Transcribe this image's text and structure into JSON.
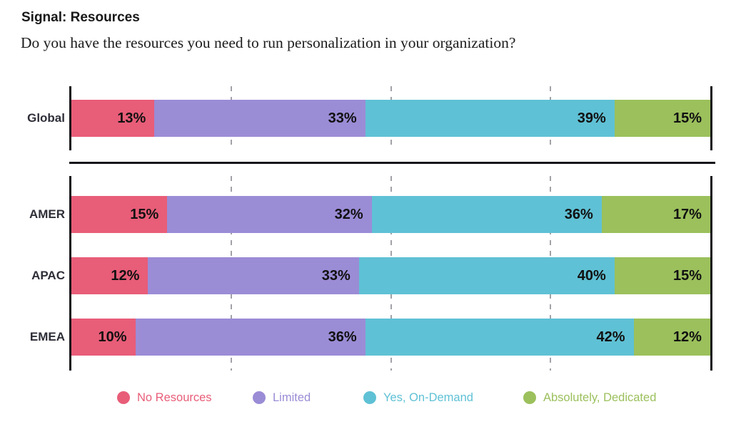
{
  "header": {
    "title": "Signal: Resources",
    "question": "Do you have the resources you need to run personalization in your organization?"
  },
  "chart_data": {
    "type": "bar",
    "orientation": "horizontal",
    "stacked": true,
    "unit": "%",
    "xlim": [
      0,
      100
    ],
    "gridlines_pct": [
      25,
      50,
      75
    ],
    "grid": "dashed-vertical",
    "title": "Signal: Resources",
    "subtitle": "Do you have the resources you need to run personalization in your organization?",
    "series_names": [
      "No Resources",
      "Limited",
      "Yes, On-Demand",
      "Absolutely, Dedicated"
    ],
    "series_colors": [
      "#E85D78",
      "#9B8CD6",
      "#5FC1D5",
      "#9BC05C"
    ],
    "groups": [
      {
        "label": "Global",
        "section": "global",
        "values": [
          13,
          33,
          39,
          15
        ],
        "value_labels": [
          "13%",
          "33%",
          "39%",
          "15%"
        ]
      },
      {
        "label": "AMER",
        "section": "regions",
        "values": [
          15,
          32,
          36,
          17
        ],
        "value_labels": [
          "15%",
          "32%",
          "36%",
          "17%"
        ]
      },
      {
        "label": "APAC",
        "section": "regions",
        "values": [
          12,
          33,
          40,
          15
        ],
        "value_labels": [
          "12%",
          "33%",
          "40%",
          "15%"
        ]
      },
      {
        "label": "EMEA",
        "section": "regions",
        "values": [
          10,
          36,
          42,
          12
        ],
        "value_labels": [
          "10%",
          "36%",
          "42%",
          "12%"
        ]
      }
    ],
    "legend_position": "bottom",
    "legend": [
      {
        "label": "No Resources",
        "color": "#E85D78"
      },
      {
        "label": "Limited",
        "color": "#9B8CD6"
      },
      {
        "label": "Yes, On-Demand",
        "color": "#5FC1D5"
      },
      {
        "label": "Absolutely, Dedicated",
        "color": "#9BC05C"
      }
    ],
    "label_color": "#111111",
    "axis_color": "#15151A",
    "gridline_color": "#A2A2A8"
  }
}
